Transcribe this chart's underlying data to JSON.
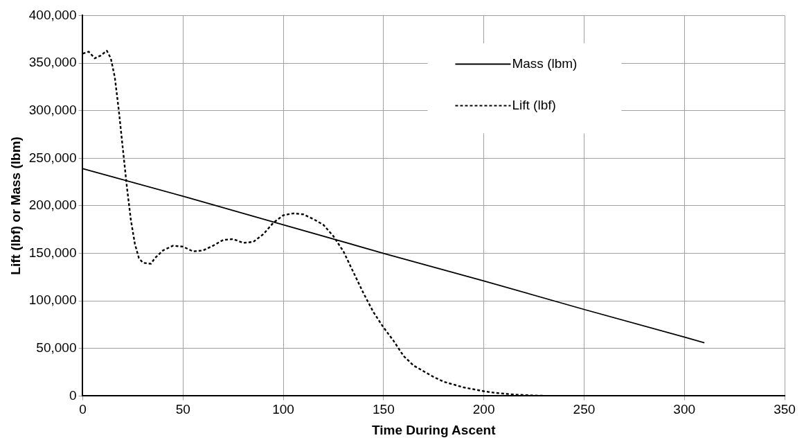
{
  "chart_data": {
    "type": "line",
    "xlabel": "Time During Ascent",
    "ylabel": "Lift (lbf) or Mass (lbm)",
    "xlim": [
      0,
      350
    ],
    "xticks": [
      0,
      50,
      100,
      150,
      200,
      250,
      300,
      350
    ],
    "ylim": [
      0,
      400000
    ],
    "yticks": [
      0,
      {
        "value": 50000,
        "label": "50,000"
      },
      {
        "value": 100000,
        "label": "100,000"
      },
      {
        "value": 150000,
        "label": "150,000"
      },
      {
        "value": 200000,
        "label": "200,000"
      },
      {
        "value": 250000,
        "label": "250,000"
      },
      {
        "value": 300000,
        "label": "300,000"
      },
      {
        "value": 350000,
        "label": "350,000"
      },
      {
        "value": 400000,
        "label": "400,000"
      }
    ],
    "grid": true,
    "legend": "top",
    "marker": "none",
    "series": [
      {
        "name": "Mass (lbm)",
        "color": "#000000",
        "line_style": "solid",
        "x": [
          0,
          50,
          100,
          150,
          200,
          250,
          300,
          310
        ],
        "values": [
          239000,
          210000,
          180000,
          150000,
          121000,
          91000,
          62000,
          56000
        ]
      },
      {
        "name": "Lift (lbf)",
        "color": "#000000",
        "line_style": "dashed",
        "x": [
          0,
          3,
          6,
          9,
          12,
          14,
          16,
          18,
          20,
          22,
          24,
          26,
          28,
          30,
          34,
          36,
          40,
          45,
          50,
          55,
          60,
          65,
          70,
          75,
          80,
          85,
          90,
          95,
          100,
          105,
          110,
          115,
          120,
          125,
          130,
          135,
          140,
          145,
          150,
          155,
          160,
          165,
          170,
          175,
          180,
          185,
          190,
          195,
          200,
          205,
          210,
          215,
          220,
          225,
          230,
          235
        ],
        "values": [
          360000,
          362000,
          355000,
          358000,
          363000,
          355000,
          335000,
          300000,
          260000,
          220000,
          185000,
          160000,
          145000,
          140000,
          139000,
          145000,
          153000,
          158000,
          157000,
          152000,
          153000,
          158000,
          164000,
          165000,
          161000,
          162000,
          170000,
          182000,
          190000,
          192000,
          191000,
          186000,
          180000,
          168000,
          152000,
          130000,
          108000,
          88000,
          72000,
          58000,
          42000,
          32000,
          26000,
          20000,
          15000,
          12000,
          9000,
          7000,
          5000,
          3500,
          2500,
          1500,
          1000,
          500,
          200,
          0
        ]
      }
    ]
  }
}
